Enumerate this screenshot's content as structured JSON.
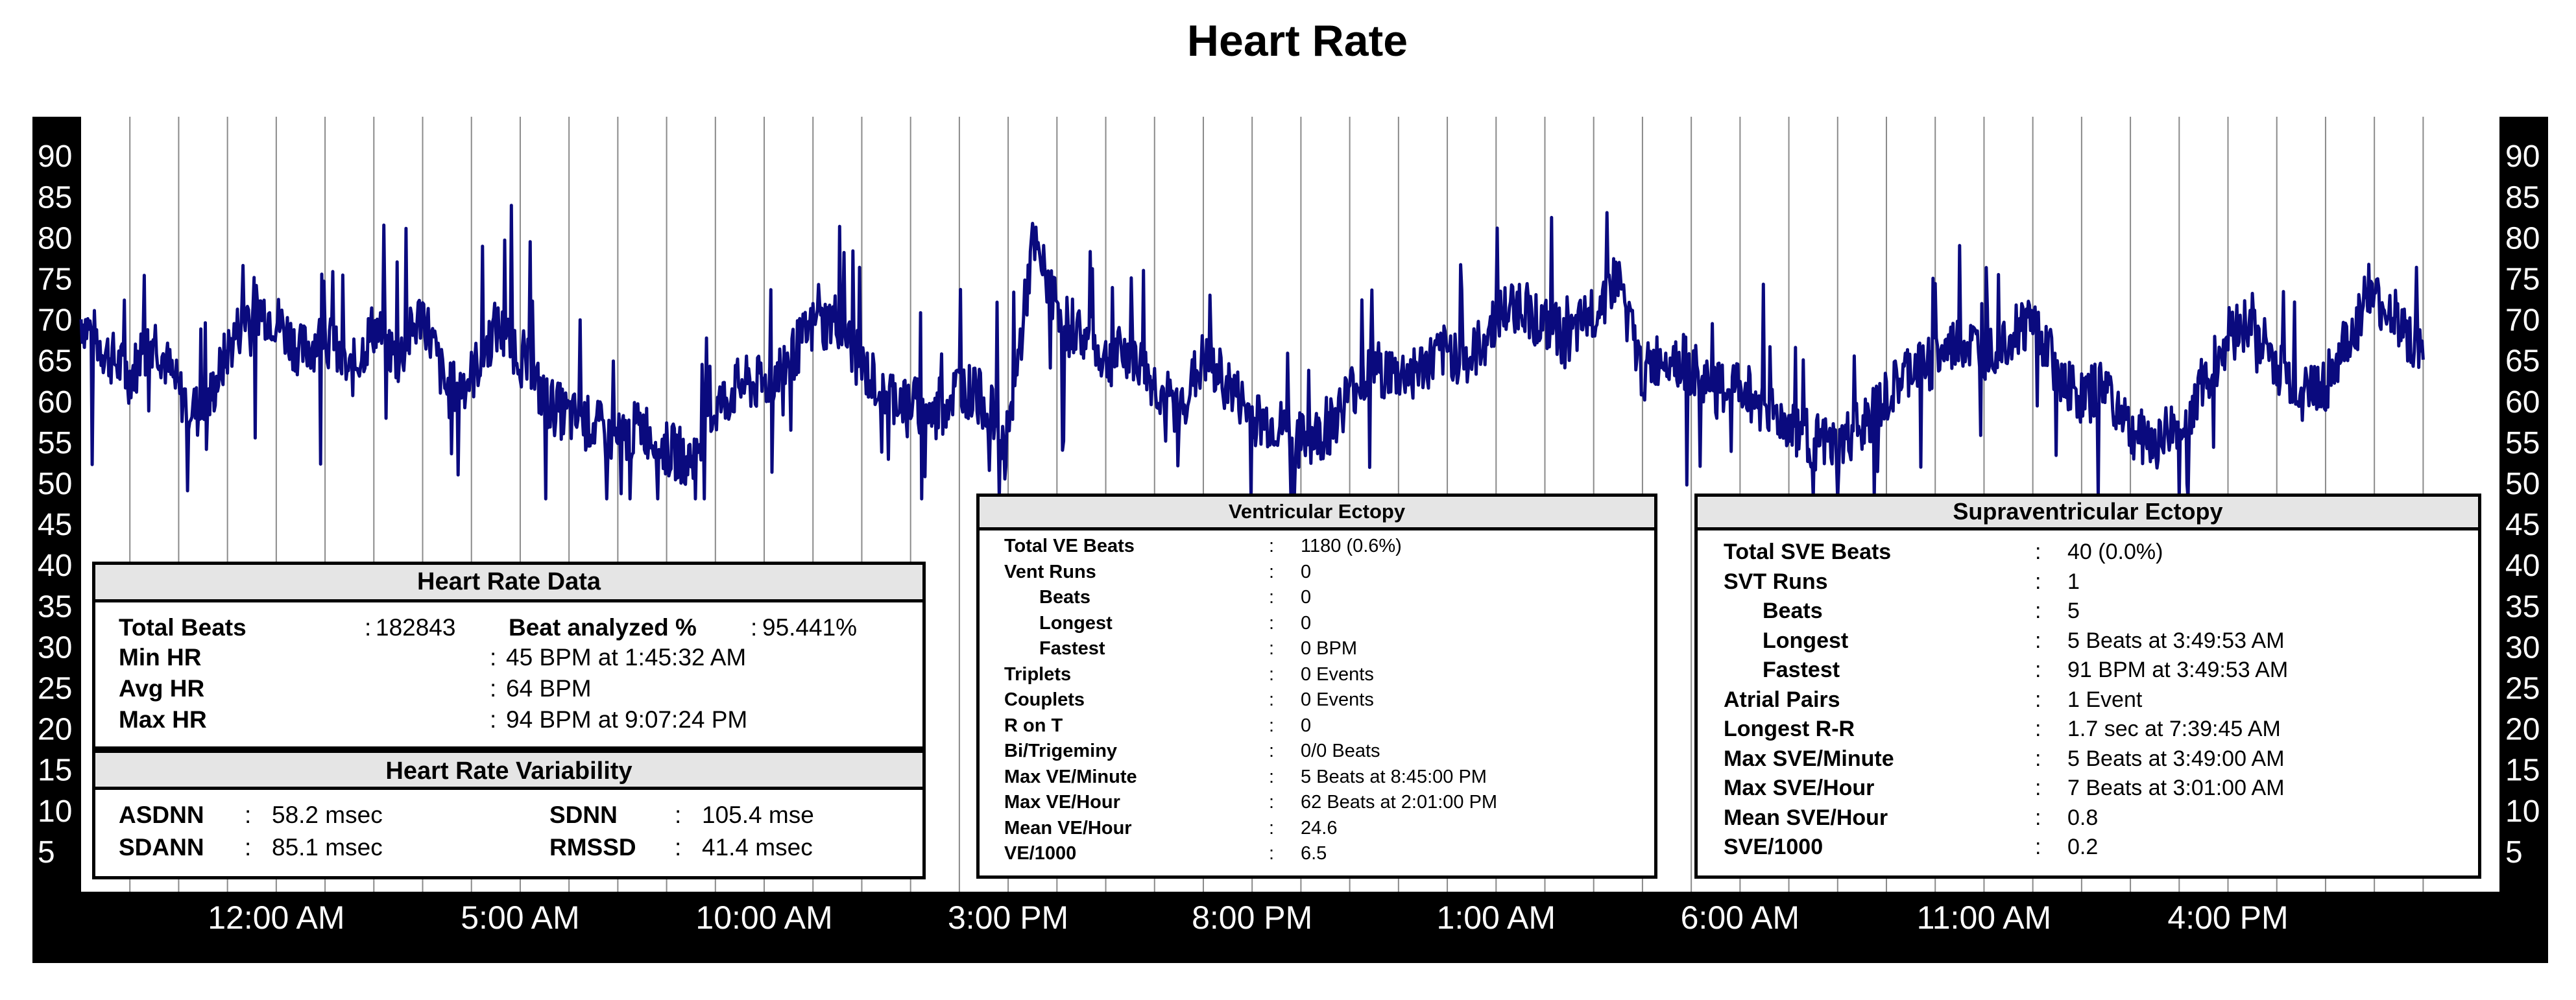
{
  "chart_data": {
    "type": "line",
    "title": "Heart Rate",
    "ylabel": "",
    "xlabel": "",
    "ylim": [
      0,
      92
    ],
    "y_ticks": [
      5,
      10,
      15,
      20,
      25,
      30,
      35,
      40,
      45,
      50,
      55,
      60,
      65,
      70,
      75,
      80,
      85,
      90
    ],
    "x_tick_labels": [
      "12:00 AM",
      "5:00 AM",
      "10:00 AM",
      "3:00 PM",
      "8:00 PM",
      "1:00 AM",
      "6:00 AM",
      "11:00 AM",
      "4:00 PM"
    ],
    "x_tick_hours": [
      4,
      9,
      14,
      19,
      24,
      29,
      34,
      39,
      44
    ],
    "x_range_hours": [
      0,
      48.5
    ],
    "grid": "vertical",
    "series": [
      {
        "name": "Heart Rate",
        "color": "#0a0a7e",
        "x_hours": [
          0,
          0.5,
          1,
          1.5,
          2,
          2.5,
          3,
          3.5,
          4,
          4.5,
          5,
          5.5,
          6,
          6.5,
          7,
          7.5,
          8,
          8.5,
          9,
          9.5,
          10,
          10.5,
          11,
          11.5,
          12,
          12.5,
          13,
          13.5,
          14,
          14.5,
          15,
          15.5,
          16,
          16.5,
          17,
          17.5,
          18,
          18.5,
          19,
          19.5,
          20,
          20.5,
          21,
          21.5,
          22,
          22.5,
          23,
          23.5,
          24,
          24.5,
          25,
          25.5,
          26,
          26.5,
          27,
          27.5,
          28,
          28.5,
          29,
          29.5,
          30,
          30.5,
          31,
          31.5,
          32,
          32.5,
          33,
          33.5,
          34,
          34.5,
          35,
          35.5,
          36,
          36.5,
          37,
          37.5,
          38,
          38.5,
          39,
          39.5,
          40,
          40.5,
          41,
          41.5,
          42,
          42.5,
          43,
          43.5,
          44,
          44.5,
          45,
          45.5,
          46,
          46.5,
          47,
          47.5,
          48
        ],
        "values": [
          70,
          66,
          63,
          68,
          61,
          58,
          66,
          72,
          70,
          66,
          68,
          63,
          69,
          65,
          71,
          61,
          63,
          69,
          66,
          60,
          58,
          57,
          55,
          57,
          54,
          53,
          59,
          62,
          62,
          65,
          69,
          70,
          64,
          61,
          60,
          58,
          62,
          60,
          55,
          79,
          72,
          68,
          65,
          66,
          62,
          59,
          65,
          62,
          58,
          57,
          55,
          56,
          61,
          64,
          63,
          64,
          66,
          65,
          70,
          72,
          69,
          67,
          71,
          75,
          63,
          66,
          64,
          61,
          62,
          59,
          57,
          55,
          54,
          57,
          60,
          64,
          65,
          67,
          66,
          68,
          70,
          64,
          60,
          62,
          56,
          55,
          57,
          62,
          68,
          70,
          64,
          61,
          62,
          68,
          72,
          70,
          65
        ]
      }
    ],
    "annotations": [
      {
        "label": "Beat analyzed %",
        "value": "95.441%"
      },
      {
        "label": "Max HR",
        "value": "94 BPM at 9:07:24 PM"
      },
      {
        "label": "Min HR",
        "value": "45 BPM at 1:45:32 AM"
      }
    ]
  },
  "heart_rate_data": {
    "title": "Heart Rate Data",
    "total_beats_label": "Total Beats",
    "total_beats_sep": ":",
    "total_beats_value": "182843",
    "beat_analyzed_label": "Beat analyzed %",
    "beat_analyzed_sep": ":",
    "beat_analyzed_value": "95.441%",
    "rows": [
      {
        "label": "Min HR",
        "sep": ":",
        "value": "45 BPM at 1:45:32 AM"
      },
      {
        "label": "Avg HR",
        "sep": ":",
        "value": "64 BPM"
      },
      {
        "label": "Max HR",
        "sep": ":",
        "value": "94 BPM at 9:07:24 PM"
      }
    ]
  },
  "hrv": {
    "title": "Heart Rate Variability",
    "asdnn_label": "ASDNN",
    "asdnn_sep": ":",
    "asdnn_value": "58.2 msec",
    "sdann_label": "SDANN",
    "sdann_sep": ":",
    "sdann_value": "85.1 msec",
    "sdnn_label": "SDNN",
    "sdnn_sep": ":",
    "sdnn_value": "105.4 mse",
    "rmssd_label": "RMSSD",
    "rmssd_sep": ":",
    "rmssd_value": "41.4 msec"
  },
  "ventricular": {
    "title": "Ventricular Ectopy",
    "rows": [
      {
        "label": "Total VE Beats",
        "sep": ":",
        "value": "1180  (0.6%)",
        "indent": false
      },
      {
        "label": "Vent Runs",
        "sep": ":",
        "value": "0",
        "indent": false
      },
      {
        "label": "Beats",
        "sep": ":",
        "value": "0",
        "indent": true
      },
      {
        "label": "Longest",
        "sep": ":",
        "value": "0",
        "indent": true
      },
      {
        "label": "Fastest",
        "sep": ":",
        "value": "0 BPM",
        "indent": true
      },
      {
        "label": "Triplets",
        "sep": ":",
        "value": "0 Events",
        "indent": false
      },
      {
        "label": "Couplets",
        "sep": ":",
        "value": "0 Events",
        "indent": false
      },
      {
        "label": "R on T",
        "sep": ":",
        "value": "0",
        "indent": false
      },
      {
        "label": "Bi/Trigeminy",
        "sep": ":",
        "value": "0/0 Beats",
        "indent": false
      },
      {
        "label": "Max VE/Minute",
        "sep": ":",
        "value": "5 Beats at 8:45:00 PM",
        "indent": false
      },
      {
        "label": "Max VE/Hour",
        "sep": ":",
        "value": "62 Beats at 2:01:00 PM",
        "indent": false
      },
      {
        "label": "Mean VE/Hour",
        "sep": ":",
        "value": "24.6",
        "indent": false
      },
      {
        "label": "VE/1000",
        "sep": ":",
        "value": "6.5",
        "indent": false
      }
    ]
  },
  "supraventricular": {
    "title": "Supraventricular Ectopy",
    "rows": [
      {
        "label": "Total SVE Beats",
        "sep": ":",
        "value": "40  (0.0%)",
        "indent": false
      },
      {
        "label": "SVT Runs",
        "sep": ":",
        "value": "1",
        "indent": false
      },
      {
        "label": "Beats",
        "sep": ":",
        "value": "5",
        "indent": true
      },
      {
        "label": "Longest",
        "sep": ":",
        "value": "5 Beats at 3:49:53 AM",
        "indent": true
      },
      {
        "label": "Fastest",
        "sep": ":",
        "value": "91 BPM at 3:49:53 AM",
        "indent": true
      },
      {
        "label": "Atrial Pairs",
        "sep": ":",
        "value": "1 Event",
        "indent": false
      },
      {
        "label": "Longest R-R",
        "sep": ":",
        "value": "1.7 sec at 7:39:45 AM",
        "indent": false
      },
      {
        "label": "Max SVE/Minute",
        "sep": ":",
        "value": "5 Beats at 3:49:00 AM",
        "indent": false
      },
      {
        "label": "Max SVE/Hour",
        "sep": ":",
        "value": "7 Beats at 3:01:00 AM",
        "indent": false
      },
      {
        "label": "Mean SVE/Hour",
        "sep": ":",
        "value": "0.8",
        "indent": false
      },
      {
        "label": "SVE/1000",
        "sep": ":",
        "value": "0.2",
        "indent": false
      }
    ]
  }
}
